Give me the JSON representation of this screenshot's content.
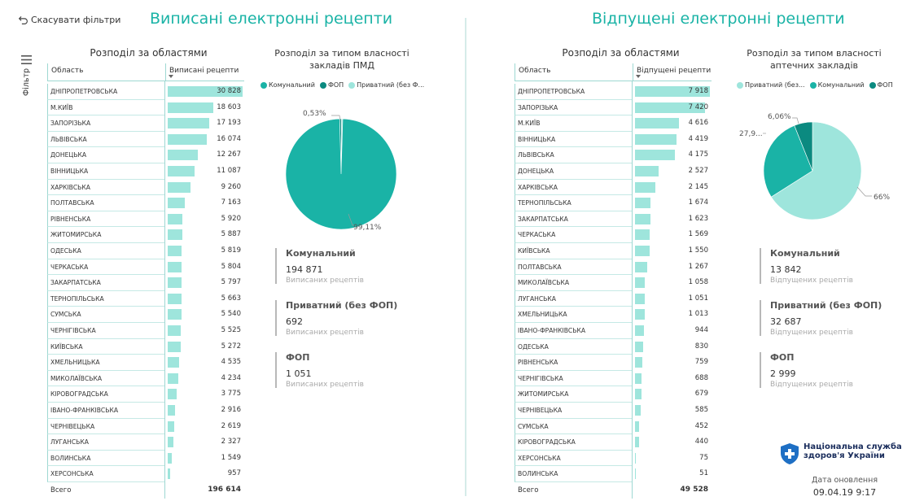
{
  "toolbar": {
    "reset_label": "Скасувати фільтри"
  },
  "filter_panel": {
    "label": "Фільтр"
  },
  "left": {
    "title": "Виписані електронні рецепти",
    "region_subtitle": "Розподіл за областями",
    "col_region": "Область",
    "col_value": "Виписані рецепти",
    "rows": [
      {
        "name": "ДНІПРОПЕТРОВСЬКА",
        "label": "30 828",
        "value": 30828
      },
      {
        "name": "М.КИЇВ",
        "label": "18 603",
        "value": 18603
      },
      {
        "name": "ЗАПОРІЗЬКА",
        "label": "17 193",
        "value": 17193
      },
      {
        "name": "ЛЬВІВСЬКА",
        "label": "16 074",
        "value": 16074
      },
      {
        "name": "ДОНЕЦЬКА",
        "label": "12 267",
        "value": 12267
      },
      {
        "name": "ВІННИЦЬКА",
        "label": "11 087",
        "value": 11087
      },
      {
        "name": "ХАРКІВСЬКА",
        "label": "9 260",
        "value": 9260
      },
      {
        "name": "ПОЛТАВСЬКА",
        "label": "7 163",
        "value": 7163
      },
      {
        "name": "РІВНЕНСЬКА",
        "label": "5 920",
        "value": 5920
      },
      {
        "name": "ЖИТОМИРСЬКА",
        "label": "5 887",
        "value": 5887
      },
      {
        "name": "ОДЕСЬКА",
        "label": "5 819",
        "value": 5819
      },
      {
        "name": "ЧЕРКАСЬКА",
        "label": "5 804",
        "value": 5804
      },
      {
        "name": "ЗАКАРПАТСЬКА",
        "label": "5 797",
        "value": 5797
      },
      {
        "name": "ТЕРНОПІЛЬСЬКА",
        "label": "5 663",
        "value": 5663
      },
      {
        "name": "СУМСЬКА",
        "label": "5 540",
        "value": 5540
      },
      {
        "name": "ЧЕРНІГІВСЬКА",
        "label": "5 525",
        "value": 5525
      },
      {
        "name": "КИЇВСЬКА",
        "label": "5 272",
        "value": 5272
      },
      {
        "name": "ХМЕЛЬНИЦЬКА",
        "label": "4 535",
        "value": 4535
      },
      {
        "name": "МИКОЛАЇВСЬКА",
        "label": "4 234",
        "value": 4234
      },
      {
        "name": "КІРОВОГРАДСЬКА",
        "label": "3 775",
        "value": 3775
      },
      {
        "name": "ІВАНО-ФРАНКІВСЬКА",
        "label": "2 916",
        "value": 2916
      },
      {
        "name": "ЧЕРНІВЕЦЬКА",
        "label": "2 619",
        "value": 2619
      },
      {
        "name": "ЛУГАНСЬКА",
        "label": "2 327",
        "value": 2327
      },
      {
        "name": "ВОЛИНСЬКА",
        "label": "1 549",
        "value": 1549
      },
      {
        "name": "ХЕРСОНСЬКА",
        "label": "957",
        "value": 957
      }
    ],
    "total_label": "Всего",
    "total_value": "196 614",
    "pie_subtitle": "Розподіл за типом власності закладів ПМД",
    "legend": [
      {
        "name": "Комунальний",
        "color": "#1ab3a6"
      },
      {
        "name": "ФОП",
        "color": "#0b8a80"
      },
      {
        "name": "Приватний (без Ф...",
        "color": "#9ee5dc"
      }
    ],
    "pie_labels": {
      "small": "0,53%",
      "large": "99,11%"
    },
    "stats": [
      {
        "title": "Комунальний",
        "value": "194 871",
        "sub": "Виписаних рецептів"
      },
      {
        "title": "Приватний (без ФОП)",
        "value": "692",
        "sub": "Виписаних рецептів"
      },
      {
        "title": "ФОП",
        "value": "1 051",
        "sub": "Виписаних рецептів"
      }
    ]
  },
  "right": {
    "title": "Відпущені електронні рецепти",
    "region_subtitle": "Розподіл за областями",
    "col_region": "Область",
    "col_value": "Відпущені рецепти",
    "rows": [
      {
        "name": "ДНІПРОПЕТРОВСЬКА",
        "label": "7 918",
        "value": 7918
      },
      {
        "name": "ЗАПОРІЗЬКА",
        "label": "7 420",
        "value": 7420
      },
      {
        "name": "М.КИЇВ",
        "label": "4 616",
        "value": 4616
      },
      {
        "name": "ВІННИЦЬКА",
        "label": "4 419",
        "value": 4419
      },
      {
        "name": "ЛЬВІВСЬКА",
        "label": "4 175",
        "value": 4175
      },
      {
        "name": "ДОНЕЦЬКА",
        "label": "2 527",
        "value": 2527
      },
      {
        "name": "ХАРКІВСЬКА",
        "label": "2 145",
        "value": 2145
      },
      {
        "name": "ТЕРНОПІЛЬСЬКА",
        "label": "1 674",
        "value": 1674
      },
      {
        "name": "ЗАКАРПАТСЬКА",
        "label": "1 623",
        "value": 1623
      },
      {
        "name": "ЧЕРКАСЬКА",
        "label": "1 569",
        "value": 1569
      },
      {
        "name": "КИЇВСЬКА",
        "label": "1 550",
        "value": 1550
      },
      {
        "name": "ПОЛТАВСЬКА",
        "label": "1 267",
        "value": 1267
      },
      {
        "name": "МИКОЛАЇВСЬКА",
        "label": "1 058",
        "value": 1058
      },
      {
        "name": "ЛУГАНСЬКА",
        "label": "1 051",
        "value": 1051
      },
      {
        "name": "ХМЕЛЬНИЦЬКА",
        "label": "1 013",
        "value": 1013
      },
      {
        "name": "ІВАНО-ФРАНКІВСЬКА",
        "label": "944",
        "value": 944
      },
      {
        "name": "ОДЕСЬКА",
        "label": "830",
        "value": 830
      },
      {
        "name": "РІВНЕНСЬКА",
        "label": "759",
        "value": 759
      },
      {
        "name": "ЧЕРНІГІВСЬКА",
        "label": "688",
        "value": 688
      },
      {
        "name": "ЖИТОМИРСЬКА",
        "label": "679",
        "value": 679
      },
      {
        "name": "ЧЕРНІВЕЦЬКА",
        "label": "585",
        "value": 585
      },
      {
        "name": "СУМСЬКА",
        "label": "452",
        "value": 452
      },
      {
        "name": "КІРОВОГРАДСЬКА",
        "label": "440",
        "value": 440
      },
      {
        "name": "ХЕРСОНСЬКА",
        "label": "75",
        "value": 75
      },
      {
        "name": "ВОЛИНСЬКА",
        "label": "51",
        "value": 51
      }
    ],
    "total_label": "Всего",
    "total_value": "49 528",
    "pie_subtitle": "Розподіл за типом власності аптечних закладів",
    "legend": [
      {
        "name": "Приватний (без...",
        "color": "#9ee5dc"
      },
      {
        "name": "Комунальний",
        "color": "#1ab3a6"
      },
      {
        "name": "ФОП",
        "color": "#0b8a80"
      }
    ],
    "pie_labels": {
      "fop": "6,06%",
      "kom": "27,9...",
      "priv": "66%"
    },
    "stats": [
      {
        "title": "Комунальний",
        "value": "13 842",
        "sub": "Відпущених рецептів"
      },
      {
        "title": "Приватний (без ФОП)",
        "value": "32 687",
        "sub": "Відпущених рецептів"
      },
      {
        "title": "ФОП",
        "value": "2 999",
        "sub": "Відпущених рецептів"
      }
    ]
  },
  "brand": {
    "line1": "Національна служба",
    "line2": "здоров'я України"
  },
  "update": {
    "label": "Дата оновлення",
    "value": "09.04.19 9:17"
  },
  "chart_data": [
    {
      "type": "bar",
      "title": "Розподіл за областями",
      "series": [
        {
          "name": "Виписані рецепти",
          "values": [
            30828,
            18603,
            17193,
            16074,
            12267,
            11087,
            9260,
            7163,
            5920,
            5887,
            5819,
            5804,
            5797,
            5663,
            5540,
            5525,
            5272,
            4535,
            4234,
            3775,
            2916,
            2619,
            2327,
            1549,
            957
          ]
        }
      ],
      "categories": [
        "ДНІПРОПЕТРОВСЬКА",
        "М.КИЇВ",
        "ЗАПОРІЗЬКА",
        "ЛЬВІВСЬКА",
        "ДОНЕЦЬКА",
        "ВІННИЦЬКА",
        "ХАРКІВСЬКА",
        "ПОЛТАВСЬКА",
        "РІВНЕНСЬКА",
        "ЖИТОМИРСЬКА",
        "ОДЕСЬКА",
        "ЧЕРКАСЬКА",
        "ЗАКАРПАТСЬКА",
        "ТЕРНОПІЛЬСЬКА",
        "СУМСЬКА",
        "ЧЕРНІГІВСЬКА",
        "КИЇВСЬКА",
        "ХМЕЛЬНИЦЬКА",
        "МИКОЛАЇВСЬКА",
        "КІРОВОГРАДСЬКА",
        "ІВАНО-ФРАНКІВСЬКА",
        "ЧЕРНІВЕЦЬКА",
        "ЛУГАНСЬКА",
        "ВОЛИНСЬКА",
        "ХЕРСОНСЬКА"
      ]
    },
    {
      "type": "pie",
      "title": "Розподіл за типом власності закладів ПМД",
      "slices": [
        {
          "name": "Комунальний",
          "value": 194871,
          "color": "#1ab3a6"
        },
        {
          "name": "Приватний (без ФОП)",
          "value": 692,
          "color": "#9ee5dc"
        },
        {
          "name": "ФОП",
          "value": 1051,
          "color": "#0b8a80"
        }
      ]
    },
    {
      "type": "bar",
      "title": "Розподіл за областями",
      "series": [
        {
          "name": "Відпущені рецепти",
          "values": [
            7918,
            7420,
            4616,
            4419,
            4175,
            2527,
            2145,
            1674,
            1623,
            1569,
            1550,
            1267,
            1058,
            1051,
            1013,
            944,
            830,
            759,
            688,
            679,
            585,
            452,
            440,
            75,
            51
          ]
        }
      ],
      "categories": [
        "ДНІПРОПЕТРОВСЬКА",
        "ЗАПОРІЗЬКА",
        "М.КИЇВ",
        "ВІННИЦЬКА",
        "ЛЬВІВСЬКА",
        "ДОНЕЦЬКА",
        "ХАРКІВСЬКА",
        "ТЕРНОПІЛЬСЬКА",
        "ЗАКАРПАТСЬКА",
        "ЧЕРКАСЬКА",
        "КИЇВСЬКА",
        "ПОЛТАВСЬКА",
        "МИКОЛАЇВСЬКА",
        "ЛУГАНСЬКА",
        "ХМЕЛЬНИЦЬКА",
        "ІВАНО-ФРАНКІВСЬКА",
        "ОДЕСЬКА",
        "РІВНЕНСЬКА",
        "ЧЕРНІГІВСЬКА",
        "ЖИТОМИРСЬКА",
        "ЧЕРНІВЕЦЬКА",
        "СУМСЬКА",
        "КІРОВОГРАДСЬКА",
        "ХЕРСОНСЬКА",
        "ВОЛИНСЬКА"
      ]
    },
    {
      "type": "pie",
      "title": "Розподіл за типом власності аптечних закладів",
      "slices": [
        {
          "name": "Приватний (без ФОП)",
          "value": 32687,
          "color": "#9ee5dc"
        },
        {
          "name": "Комунальний",
          "value": 13842,
          "color": "#1ab3a6"
        },
        {
          "name": "ФОП",
          "value": 2999,
          "color": "#0b8a80"
        }
      ]
    }
  ]
}
